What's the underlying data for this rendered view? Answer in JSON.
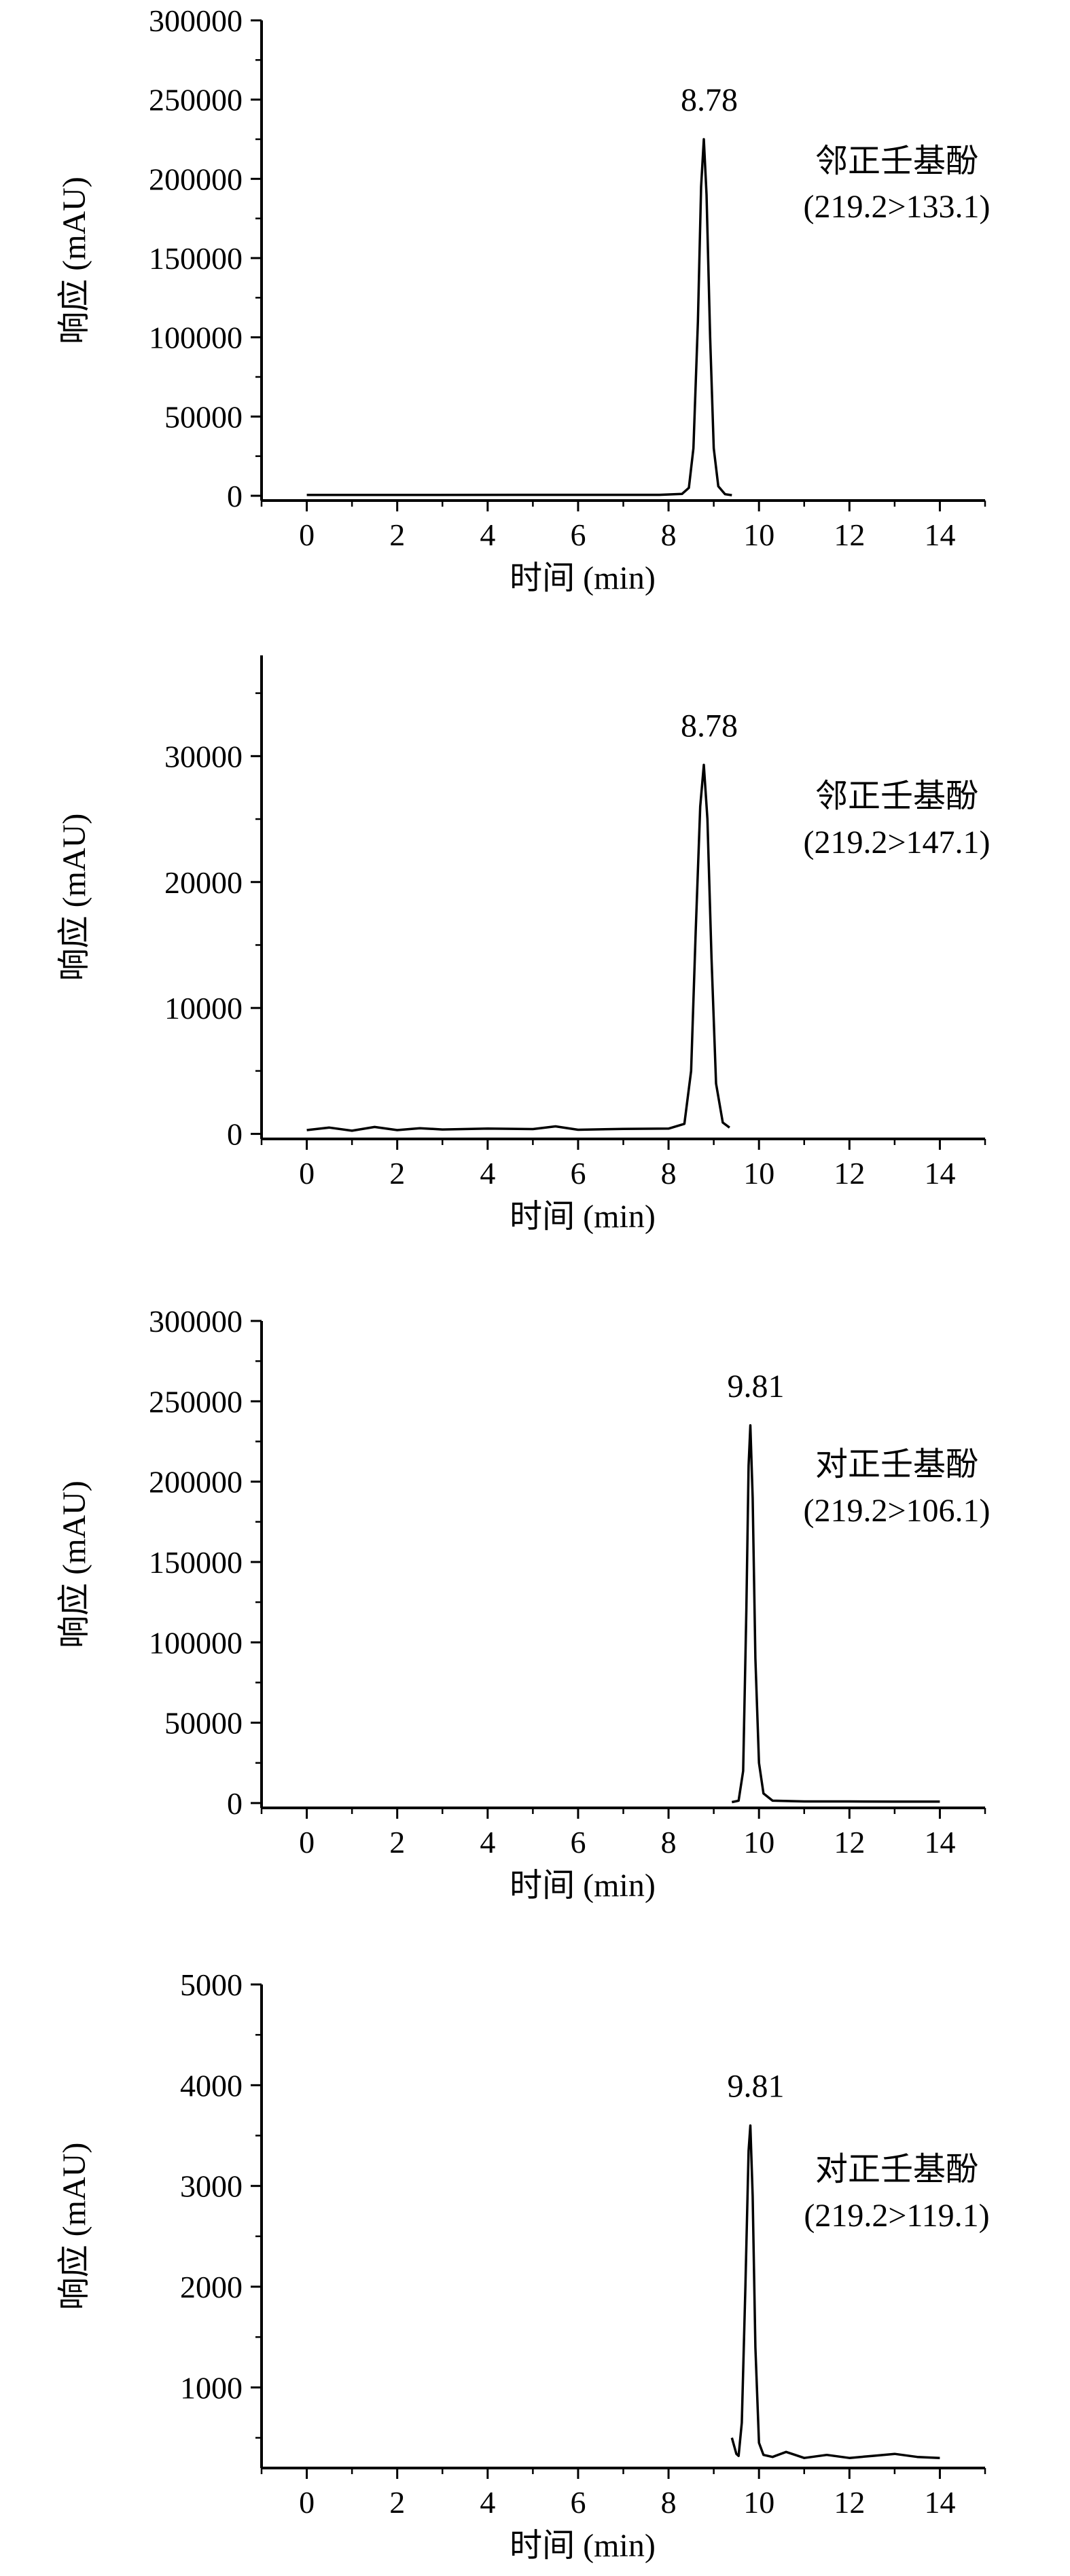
{
  "chart_data": [
    {
      "type": "line",
      "xlabel": "时间 (min)",
      "ylabel": "响应 (mAU)",
      "xlim": [
        -1,
        15
      ],
      "ylim": [
        -3000,
        300000
      ],
      "xticks": [
        "0",
        "2",
        "4",
        "6",
        "8",
        "10",
        "12",
        "14"
      ],
      "yticks": [
        "0",
        "50000",
        "100000",
        "150000",
        "200000",
        "250000",
        "300000"
      ],
      "compound": "邻正壬基酚",
      "transition": "(219.2>133.1)",
      "peak_label": "8.78",
      "series": [
        {
          "x": [
            0,
            7.8,
            8.3,
            8.45,
            8.55,
            8.65,
            8.72,
            8.78,
            8.84,
            8.92,
            9.0,
            9.1,
            9.25,
            9.4
          ],
          "values": [
            500,
            600,
            1200,
            5000,
            30000,
            110000,
            195000,
            225000,
            190000,
            100000,
            30000,
            6000,
            1000,
            400
          ]
        }
      ]
    },
    {
      "type": "line",
      "xlabel": "时间 (min)",
      "ylabel": "响应 (mAU)",
      "xlim": [
        -1,
        15
      ],
      "ylim": [
        -400,
        38000
      ],
      "xticks": [
        "0",
        "2",
        "4",
        "6",
        "8",
        "10",
        "12",
        "14"
      ],
      "yticks": [
        "0",
        "10000",
        "20000",
        "30000"
      ],
      "compound": "邻正壬基酚",
      "transition": "(219.2>147.1)",
      "peak_label": "8.78",
      "series": [
        {
          "x": [
            0,
            0.5,
            1.0,
            1.5,
            2.0,
            2.5,
            3.0,
            4.0,
            5.0,
            5.5,
            6.0,
            7.0,
            8.0,
            8.35,
            8.5,
            8.6,
            8.7,
            8.78,
            8.86,
            8.95,
            9.05,
            9.2,
            9.35
          ],
          "values": [
            300,
            500,
            250,
            550,
            300,
            450,
            350,
            420,
            380,
            600,
            330,
            400,
            420,
            800,
            5000,
            16000,
            26000,
            29300,
            25000,
            14000,
            4000,
            900,
            500
          ]
        }
      ]
    },
    {
      "type": "line",
      "xlabel": "时间 (min)",
      "ylabel": "响应 (mAU)",
      "xlim": [
        -1,
        15
      ],
      "ylim": [
        -3000,
        300000
      ],
      "xticks": [
        "0",
        "2",
        "4",
        "6",
        "8",
        "10",
        "12",
        "14"
      ],
      "yticks": [
        "0",
        "50000",
        "100000",
        "150000",
        "200000",
        "250000",
        "300000"
      ],
      "compound": "对正壬基酚",
      "transition": "(219.2>106.1)",
      "peak_label": "9.81",
      "series": [
        {
          "x": [
            9.4,
            9.55,
            9.65,
            9.72,
            9.77,
            9.81,
            9.86,
            9.92,
            10.0,
            10.1,
            10.3,
            11.0,
            12.0,
            13.0,
            14.0
          ],
          "values": [
            600,
            1500,
            20000,
            120000,
            210000,
            235000,
            190000,
            90000,
            25000,
            6000,
            1500,
            1000,
            1000,
            900,
            900
          ]
        }
      ]
    },
    {
      "type": "line",
      "xlabel": "时间 (min)",
      "ylabel": "响应 (mAU)",
      "xlim": [
        -1,
        15
      ],
      "ylim": [
        200,
        5000
      ],
      "xticks": [
        "0",
        "2",
        "4",
        "6",
        "8",
        "10",
        "12",
        "14"
      ],
      "yticks": [
        "1000",
        "2000",
        "3000",
        "4000",
        "5000"
      ],
      "compound": "对正壬基酚",
      "transition": "(219.2>119.1)",
      "peak_label": "9.81",
      "series": [
        {
          "x": [
            9.4,
            9.5,
            9.55,
            9.62,
            9.7,
            9.77,
            9.81,
            9.86,
            9.92,
            10.0,
            10.1,
            10.3,
            10.6,
            10.8,
            11.0,
            11.5,
            12.0,
            12.5,
            13.0,
            13.5,
            14.0
          ],
          "values": [
            500,
            340,
            320,
            650,
            2000,
            3350,
            3600,
            2900,
            1400,
            450,
            330,
            310,
            360,
            330,
            300,
            330,
            300,
            320,
            340,
            310,
            300
          ]
        }
      ]
    }
  ]
}
